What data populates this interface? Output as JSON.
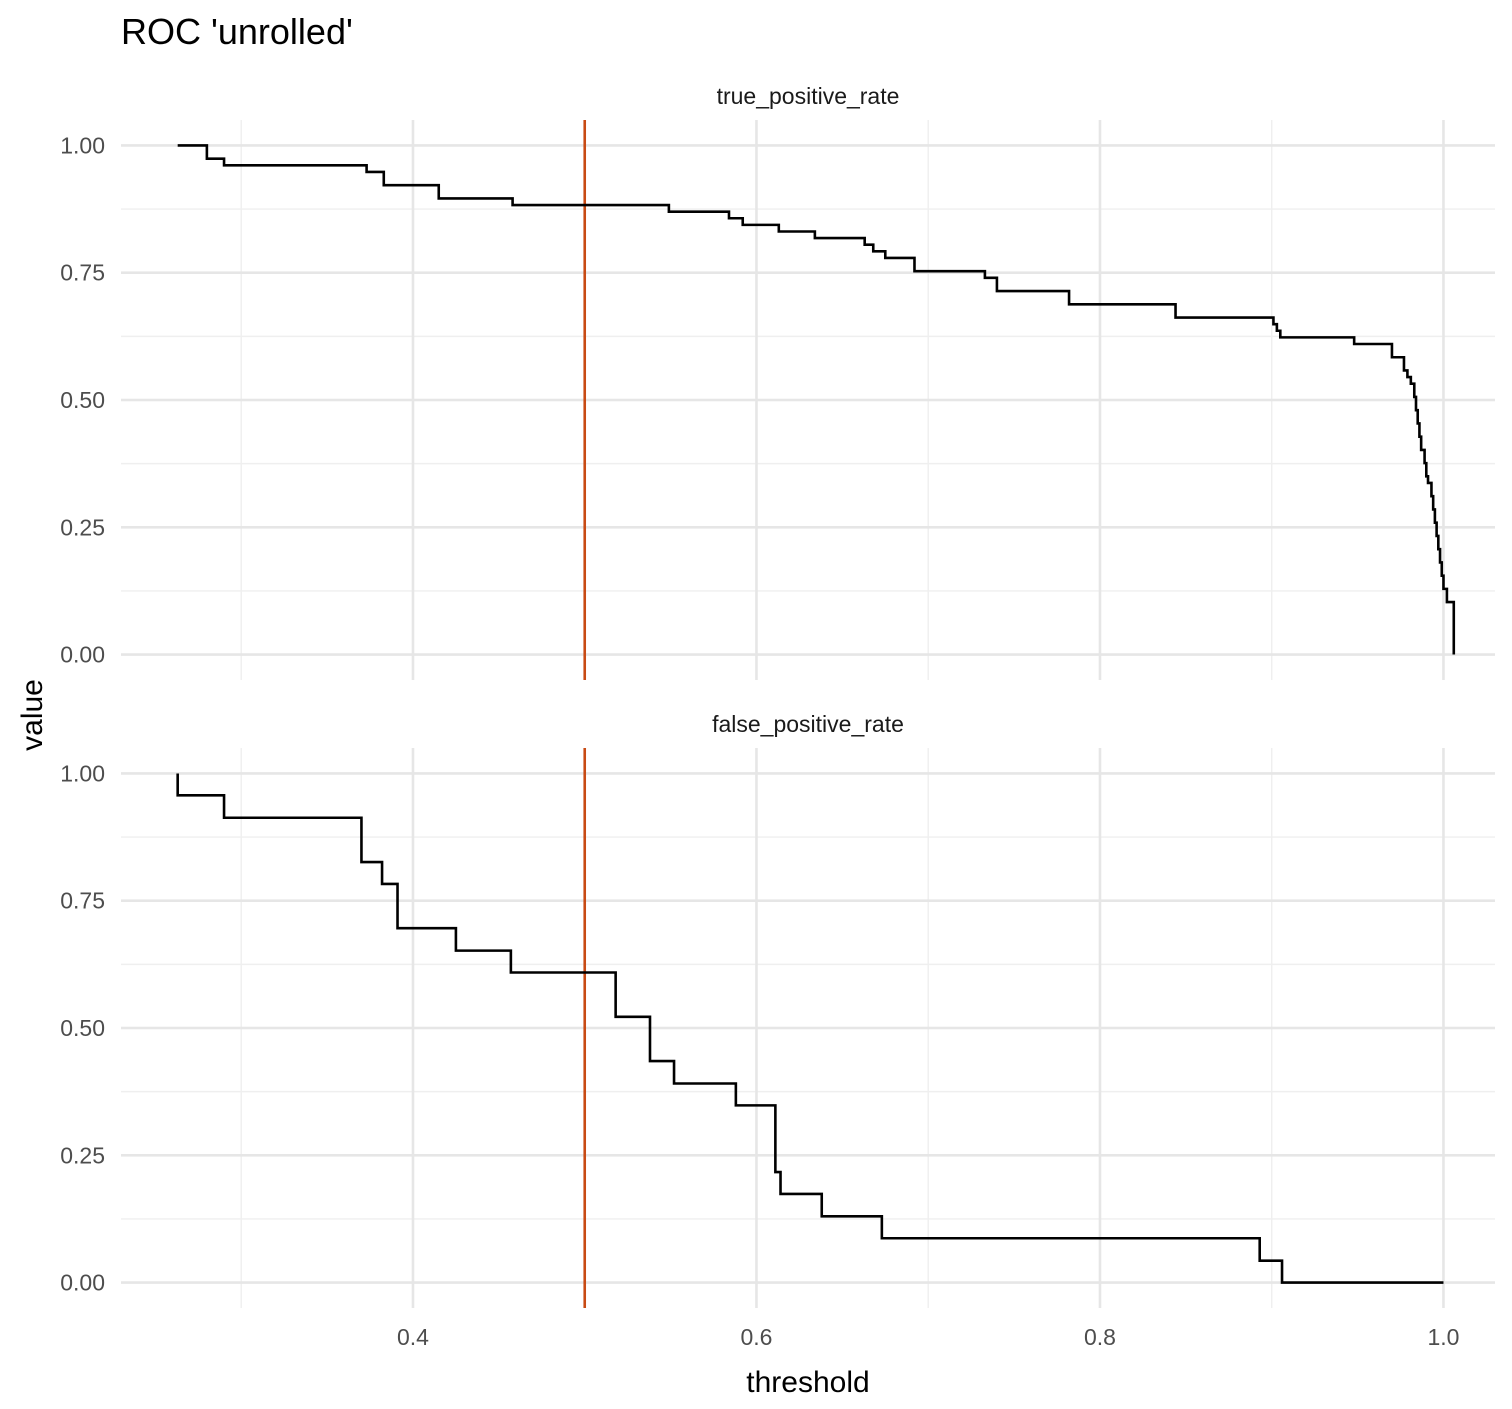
{
  "chart_data": {
    "type": "line",
    "title": "ROC 'unrolled'",
    "xlabel": "threshold",
    "ylabel": "value",
    "xlim": [
      0.23,
      1.03
    ],
    "ylim": [
      -0.05,
      1.05
    ],
    "x_ticks": [
      {
        "value": 0.4,
        "label": "0.4"
      },
      {
        "value": 0.6,
        "label": "0.6"
      },
      {
        "value": 0.8,
        "label": "0.8"
      },
      {
        "value": 1.0,
        "label": "1.0"
      }
    ],
    "y_ticks": [
      {
        "value": 1.0,
        "label": "1.00"
      },
      {
        "value": 0.75,
        "label": "0.75"
      },
      {
        "value": 0.5,
        "label": "0.50"
      },
      {
        "value": 0.25,
        "label": "0.25"
      },
      {
        "value": 0.0,
        "label": "0.00"
      }
    ],
    "grid": true,
    "reference_line": {
      "x": 0.5,
      "color": "#c84b14"
    },
    "line_color": "#000000",
    "panels": [
      {
        "name": "true_positive_rate",
        "step_points": [
          [
            0.263,
            1.0
          ],
          [
            0.28,
            1.0
          ],
          [
            0.28,
            0.974
          ],
          [
            0.29,
            0.974
          ],
          [
            0.29,
            0.961
          ],
          [
            0.373,
            0.961
          ],
          [
            0.373,
            0.948
          ],
          [
            0.383,
            0.948
          ],
          [
            0.383,
            0.922
          ],
          [
            0.415,
            0.922
          ],
          [
            0.415,
            0.896
          ],
          [
            0.458,
            0.896
          ],
          [
            0.458,
            0.883
          ],
          [
            0.549,
            0.883
          ],
          [
            0.549,
            0.87
          ],
          [
            0.584,
            0.87
          ],
          [
            0.584,
            0.857
          ],
          [
            0.592,
            0.857
          ],
          [
            0.592,
            0.844
          ],
          [
            0.613,
            0.844
          ],
          [
            0.613,
            0.831
          ],
          [
            0.634,
            0.831
          ],
          [
            0.634,
            0.818
          ],
          [
            0.663,
            0.818
          ],
          [
            0.663,
            0.805
          ],
          [
            0.668,
            0.805
          ],
          [
            0.668,
            0.792
          ],
          [
            0.675,
            0.792
          ],
          [
            0.675,
            0.779
          ],
          [
            0.692,
            0.779
          ],
          [
            0.692,
            0.753
          ],
          [
            0.733,
            0.753
          ],
          [
            0.733,
            0.74
          ],
          [
            0.74,
            0.74
          ],
          [
            0.74,
            0.714
          ],
          [
            0.782,
            0.714
          ],
          [
            0.782,
            0.688
          ],
          [
            0.844,
            0.688
          ],
          [
            0.844,
            0.662
          ],
          [
            0.901,
            0.662
          ],
          [
            0.901,
            0.649
          ],
          [
            0.903,
            0.649
          ],
          [
            0.903,
            0.636
          ],
          [
            0.905,
            0.636
          ],
          [
            0.905,
            0.623
          ],
          [
            0.948,
            0.623
          ],
          [
            0.948,
            0.61
          ],
          [
            0.97,
            0.61
          ],
          [
            0.97,
            0.584
          ],
          [
            0.977,
            0.584
          ],
          [
            0.977,
            0.558
          ],
          [
            0.979,
            0.558
          ],
          [
            0.979,
            0.545
          ],
          [
            0.981,
            0.545
          ],
          [
            0.981,
            0.532
          ],
          [
            0.983,
            0.532
          ],
          [
            0.983,
            0.506
          ],
          [
            0.984,
            0.506
          ],
          [
            0.984,
            0.48
          ],
          [
            0.985,
            0.48
          ],
          [
            0.985,
            0.454
          ],
          [
            0.986,
            0.454
          ],
          [
            0.986,
            0.428
          ],
          [
            0.987,
            0.428
          ],
          [
            0.987,
            0.402
          ],
          [
            0.989,
            0.402
          ],
          [
            0.989,
            0.376
          ],
          [
            0.99,
            0.376
          ],
          [
            0.99,
            0.35
          ],
          [
            0.991,
            0.35
          ],
          [
            0.991,
            0.337
          ],
          [
            0.993,
            0.337
          ],
          [
            0.993,
            0.311
          ],
          [
            0.994,
            0.311
          ],
          [
            0.994,
            0.285
          ],
          [
            0.995,
            0.285
          ],
          [
            0.995,
            0.259
          ],
          [
            0.996,
            0.259
          ],
          [
            0.996,
            0.233
          ],
          [
            0.997,
            0.233
          ],
          [
            0.997,
            0.207
          ],
          [
            0.998,
            0.207
          ],
          [
            0.998,
            0.181
          ],
          [
            0.999,
            0.181
          ],
          [
            0.999,
            0.155
          ],
          [
            1.0,
            0.155
          ],
          [
            1.0,
            0.129
          ],
          [
            1.002,
            0.129
          ],
          [
            1.002,
            0.103
          ],
          [
            1.006,
            0.103
          ],
          [
            1.006,
            0.0
          ]
        ]
      },
      {
        "name": "false_positive_rate",
        "step_points": [
          [
            0.263,
            1.0
          ],
          [
            0.263,
            0.957
          ],
          [
            0.29,
            0.957
          ],
          [
            0.29,
            0.913
          ],
          [
            0.37,
            0.913
          ],
          [
            0.37,
            0.826
          ],
          [
            0.382,
            0.826
          ],
          [
            0.382,
            0.783
          ],
          [
            0.391,
            0.783
          ],
          [
            0.391,
            0.696
          ],
          [
            0.425,
            0.696
          ],
          [
            0.425,
            0.652
          ],
          [
            0.457,
            0.652
          ],
          [
            0.457,
            0.609
          ],
          [
            0.518,
            0.609
          ],
          [
            0.518,
            0.522
          ],
          [
            0.538,
            0.522
          ],
          [
            0.538,
            0.435
          ],
          [
            0.552,
            0.435
          ],
          [
            0.552,
            0.391
          ],
          [
            0.588,
            0.391
          ],
          [
            0.588,
            0.348
          ],
          [
            0.611,
            0.348
          ],
          [
            0.611,
            0.217
          ],
          [
            0.614,
            0.217
          ],
          [
            0.614,
            0.174
          ],
          [
            0.638,
            0.174
          ],
          [
            0.638,
            0.13
          ],
          [
            0.673,
            0.13
          ],
          [
            0.673,
            0.087
          ],
          [
            0.893,
            0.087
          ],
          [
            0.893,
            0.043
          ],
          [
            0.906,
            0.043
          ],
          [
            0.906,
            0.0
          ],
          [
            1.0,
            0.0
          ]
        ]
      }
    ]
  }
}
